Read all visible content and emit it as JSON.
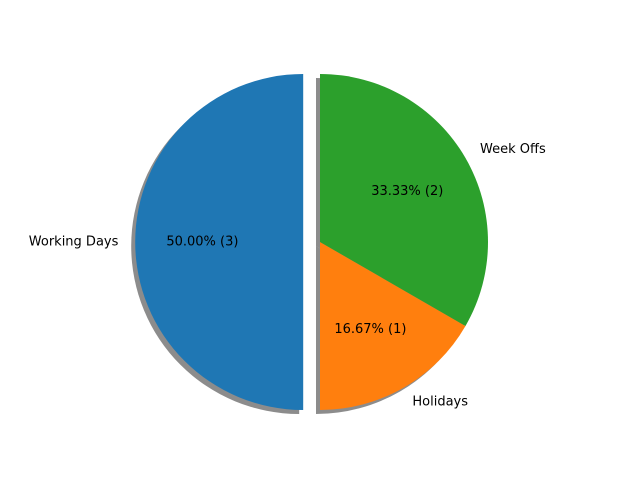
{
  "chart_data": {
    "type": "pie",
    "categories": [
      "Working Days",
      "Holidays",
      "Week Offs"
    ],
    "values": [
      3,
      1,
      2
    ],
    "percent_labels": [
      "50.00%  (3)",
      "16.67%  (1)",
      "33.33%  (2)"
    ],
    "colors": [
      "#1f77b4",
      "#ff7f0e",
      "#2ca02c"
    ],
    "exploded": [
      true,
      false,
      false
    ],
    "shadow": true,
    "start_angle_deg": 90,
    "direction": "counterclockwise"
  }
}
